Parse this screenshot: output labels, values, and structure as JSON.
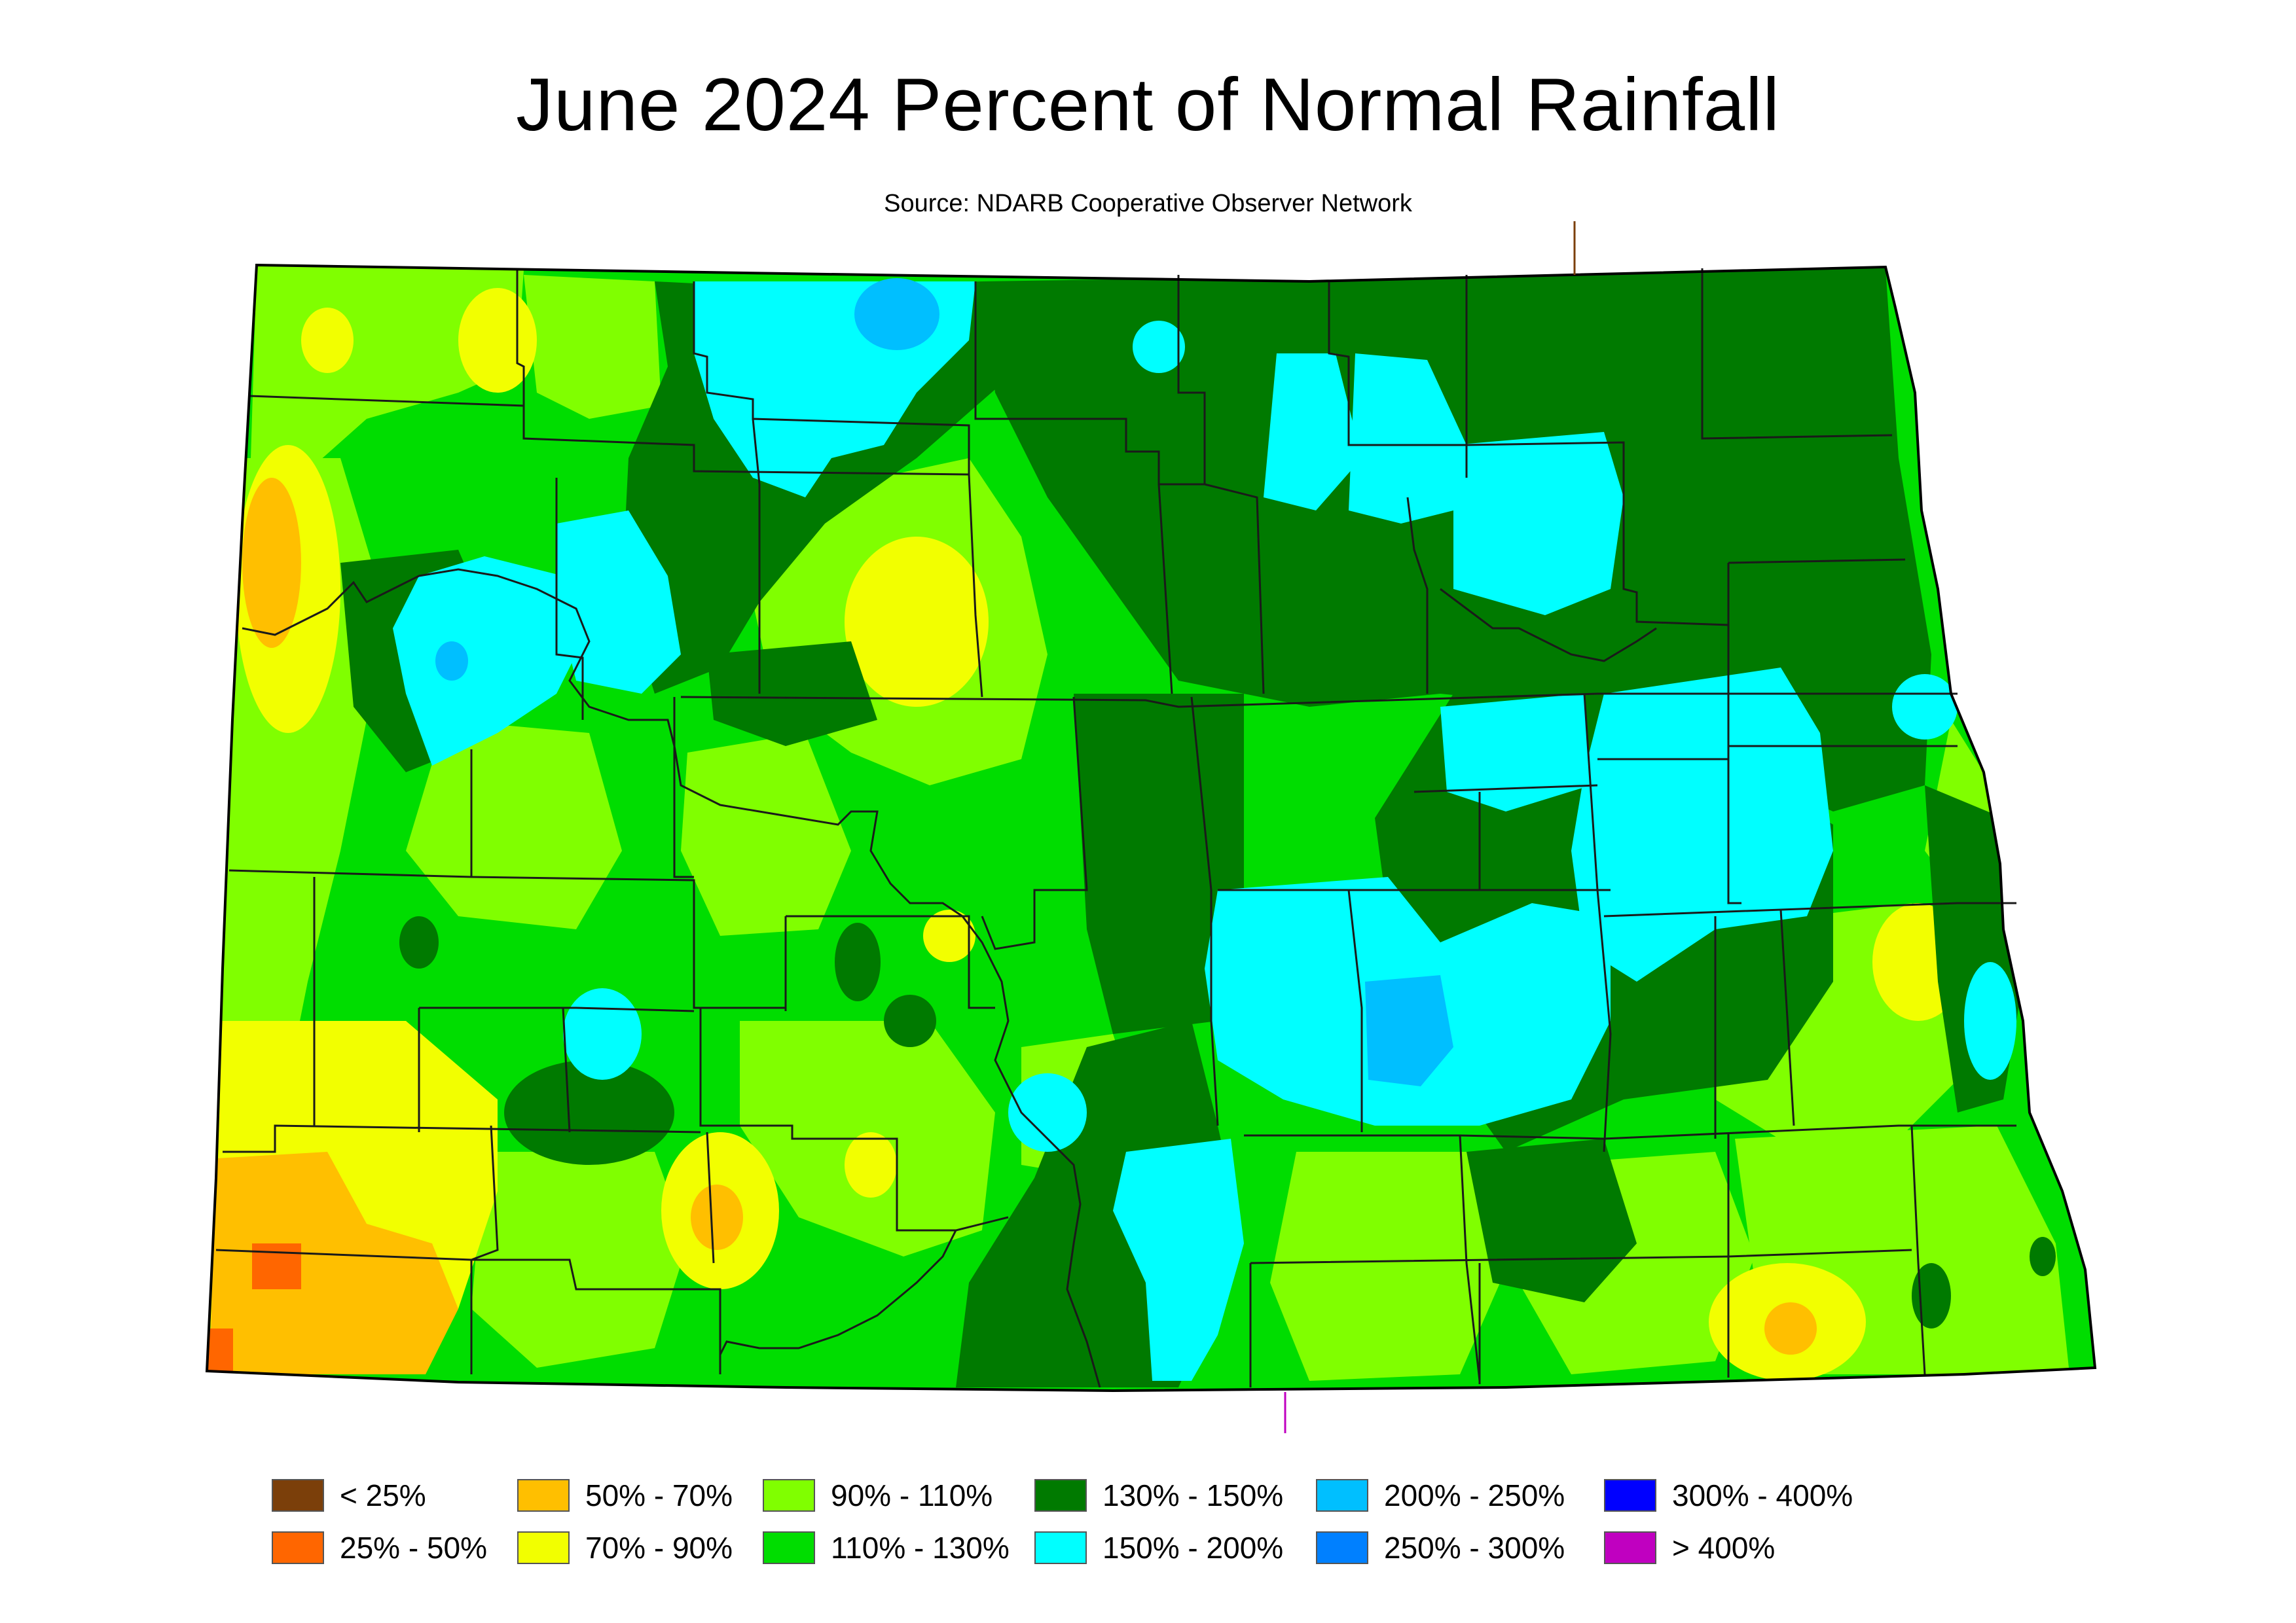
{
  "title": "June 2024 Percent of Normal Rainfall",
  "subtitle": "Source: NDARB Cooperative Observer Network",
  "legend": [
    {
      "label": "< 25%",
      "color": "#7B3F0A"
    },
    {
      "label": "25% - 50%",
      "color": "#FF6600"
    },
    {
      "label": "50% - 70%",
      "color": "#FFBF00"
    },
    {
      "label": "70% - 90%",
      "color": "#F2FF00"
    },
    {
      "label": "90% - 110%",
      "color": "#80FF00"
    },
    {
      "label": "110% - 130%",
      "color": "#00DD00"
    },
    {
      "label": "130% - 150%",
      "color": "#007A00"
    },
    {
      "label": "150% - 200%",
      "color": "#00FFFF"
    },
    {
      "label": "200% - 250%",
      "color": "#00BFFF"
    },
    {
      "label": "250% - 300%",
      "color": "#0080FF"
    },
    {
      "label": "300% - 400%",
      "color": "#0000FF"
    },
    {
      "label": "> 400%",
      "color": "#C000C0"
    }
  ]
}
